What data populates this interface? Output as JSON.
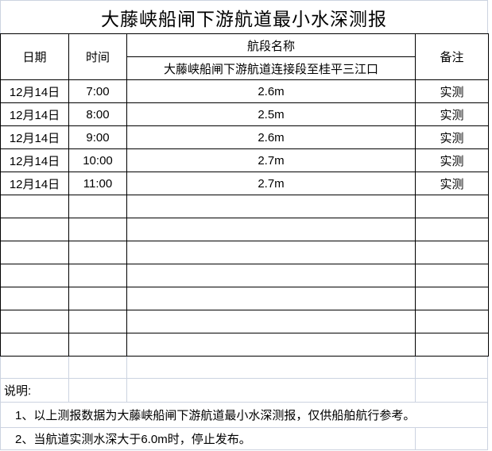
{
  "page": {
    "title": "大藤峡船闸下游航道最小水深测报"
  },
  "table": {
    "col_headers": {
      "date": "日期",
      "time": "时间",
      "section": "航段名称",
      "remark": "备注"
    },
    "section_name": "大藤峡船闸下游航道连接段至桂平三江口",
    "rows": [
      {
        "date": "12月14日",
        "time": "7:00",
        "depth": "2.6m",
        "remark": "实测"
      },
      {
        "date": "12月14日",
        "time": "8:00",
        "depth": "2.5m",
        "remark": "实测"
      },
      {
        "date": "12月14日",
        "time": "9:00",
        "depth": "2.6m",
        "remark": "实测"
      },
      {
        "date": "12月14日",
        "time": "10:00",
        "depth": "2.7m",
        "remark": "实测"
      },
      {
        "date": "12月14日",
        "time": "11:00",
        "depth": "2.7m",
        "remark": "实测"
      }
    ],
    "empty_row_count": 7
  },
  "notes": {
    "label": "说明:",
    "item1": "1、以上测报数据为大藤峡船闸下游航道最小水深测报，仅供船舶航行参考。",
    "item2": "2、当航道实测水深大于6.0m时，停止发布。"
  },
  "colors": {
    "table_border": "#000000",
    "gridline_light": "#ccd3e0",
    "text": "#000000",
    "background": "#ffffff"
  }
}
